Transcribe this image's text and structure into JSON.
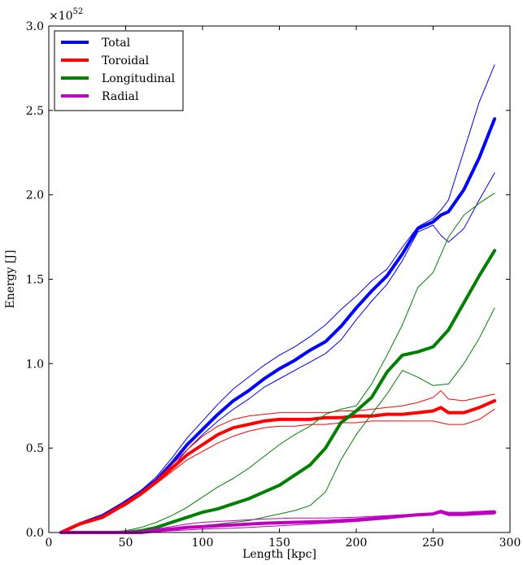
{
  "chart_data": {
    "type": "line",
    "title": "",
    "xlabel": "Length [kpc]",
    "ylabel": "Energy [J]",
    "y_multiplier": "×10^52",
    "y_multiplier_base": "×10",
    "y_multiplier_exp": "52",
    "xlim": [
      0,
      300
    ],
    "ylim": [
      0,
      3.0
    ],
    "xticks": [
      0,
      50,
      100,
      150,
      200,
      250,
      300
    ],
    "xtick_labels": [
      "0",
      "50",
      "100",
      "150",
      "200",
      "250",
      "300"
    ],
    "yticks": [
      0,
      0.5,
      1.0,
      1.5,
      2.0,
      2.5,
      3.0
    ],
    "ytick_labels": [
      "0.0",
      "0.5",
      "1.0",
      "1.5",
      "2.0",
      "2.5",
      "3.0"
    ],
    "grid": false,
    "legend_position": "top-left",
    "series": [
      {
        "name": "Total",
        "color": "#0000ff",
        "x": [
          8,
          20,
          35,
          50,
          60,
          70,
          80,
          90,
          100,
          110,
          120,
          130,
          140,
          150,
          160,
          170,
          180,
          190,
          200,
          210,
          220,
          230,
          240,
          250,
          255,
          260,
          270,
          280,
          290
        ],
        "mean": [
          0.0,
          0.05,
          0.1,
          0.18,
          0.24,
          0.31,
          0.41,
          0.52,
          0.61,
          0.7,
          0.78,
          0.84,
          0.91,
          0.97,
          1.02,
          1.08,
          1.13,
          1.22,
          1.33,
          1.43,
          1.52,
          1.65,
          1.8,
          1.84,
          1.88,
          1.9,
          2.03,
          2.22,
          2.45
        ],
        "upper": [
          0.0,
          0.05,
          0.1,
          0.19,
          0.25,
          0.33,
          0.44,
          0.56,
          0.66,
          0.76,
          0.85,
          0.92,
          0.99,
          1.05,
          1.1,
          1.16,
          1.23,
          1.32,
          1.4,
          1.49,
          1.56,
          1.69,
          1.81,
          1.86,
          1.91,
          1.97,
          2.26,
          2.55,
          2.77
        ],
        "lower": [
          0.0,
          0.05,
          0.09,
          0.17,
          0.23,
          0.29,
          0.38,
          0.49,
          0.58,
          0.66,
          0.73,
          0.79,
          0.86,
          0.91,
          0.96,
          1.01,
          1.06,
          1.14,
          1.26,
          1.37,
          1.47,
          1.61,
          1.78,
          1.82,
          1.76,
          1.72,
          1.8,
          1.97,
          2.13
        ]
      },
      {
        "name": "Toroidal",
        "color": "#ff0000",
        "x": [
          8,
          20,
          35,
          50,
          60,
          70,
          80,
          90,
          100,
          110,
          120,
          130,
          140,
          150,
          160,
          170,
          180,
          190,
          200,
          210,
          220,
          230,
          240,
          250,
          255,
          260,
          270,
          280,
          290
        ],
        "mean": [
          0.0,
          0.05,
          0.09,
          0.17,
          0.23,
          0.3,
          0.38,
          0.46,
          0.52,
          0.58,
          0.62,
          0.64,
          0.66,
          0.67,
          0.67,
          0.67,
          0.68,
          0.68,
          0.69,
          0.69,
          0.7,
          0.7,
          0.71,
          0.72,
          0.74,
          0.71,
          0.71,
          0.74,
          0.78
        ],
        "upper": [
          0.0,
          0.05,
          0.1,
          0.18,
          0.24,
          0.31,
          0.4,
          0.49,
          0.57,
          0.63,
          0.67,
          0.69,
          0.7,
          0.71,
          0.71,
          0.71,
          0.71,
          0.72,
          0.72,
          0.73,
          0.74,
          0.75,
          0.77,
          0.8,
          0.84,
          0.79,
          0.78,
          0.8,
          0.82
        ],
        "lower": [
          0.0,
          0.05,
          0.09,
          0.16,
          0.22,
          0.29,
          0.36,
          0.43,
          0.48,
          0.53,
          0.57,
          0.6,
          0.62,
          0.63,
          0.63,
          0.64,
          0.64,
          0.65,
          0.65,
          0.66,
          0.66,
          0.66,
          0.66,
          0.66,
          0.65,
          0.64,
          0.64,
          0.67,
          0.73
        ]
      },
      {
        "name": "Longitudinal",
        "color": "#008000",
        "x": [
          8,
          30,
          50,
          60,
          70,
          80,
          90,
          100,
          110,
          120,
          130,
          140,
          150,
          160,
          170,
          180,
          190,
          200,
          210,
          220,
          230,
          240,
          250,
          260,
          270,
          280,
          290
        ],
        "mean": [
          0.0,
          0.0,
          0.0,
          0.01,
          0.03,
          0.06,
          0.09,
          0.12,
          0.14,
          0.17,
          0.2,
          0.24,
          0.28,
          0.34,
          0.4,
          0.5,
          0.65,
          0.72,
          0.8,
          0.95,
          1.05,
          1.07,
          1.1,
          1.2,
          1.36,
          1.52,
          1.67
        ],
        "upper": [
          0.0,
          0.0,
          0.01,
          0.03,
          0.06,
          0.1,
          0.15,
          0.21,
          0.27,
          0.32,
          0.38,
          0.45,
          0.52,
          0.58,
          0.63,
          0.7,
          0.73,
          0.75,
          0.88,
          1.05,
          1.23,
          1.45,
          1.54,
          1.75,
          1.88,
          1.95,
          2.01
        ],
        "lower": [
          0.0,
          0.0,
          0.0,
          0.0,
          0.01,
          0.02,
          0.03,
          0.04,
          0.05,
          0.06,
          0.07,
          0.09,
          0.11,
          0.13,
          0.16,
          0.24,
          0.43,
          0.58,
          0.7,
          0.82,
          0.96,
          0.92,
          0.87,
          0.88,
          1.0,
          1.15,
          1.33
        ]
      },
      {
        "name": "Radial",
        "color": "#bf00bf",
        "x": [
          8,
          30,
          50,
          60,
          70,
          80,
          90,
          100,
          120,
          140,
          160,
          180,
          200,
          220,
          240,
          250,
          255,
          260,
          270,
          280,
          290
        ],
        "mean": [
          0.0,
          0.0,
          0.0,
          0.0,
          0.01,
          0.02,
          0.03,
          0.035,
          0.045,
          0.055,
          0.06,
          0.065,
          0.075,
          0.09,
          0.105,
          0.11,
          0.125,
          0.11,
          0.11,
          0.115,
          0.12
        ],
        "upper": [
          0.0,
          0.0,
          0.0,
          0.01,
          0.02,
          0.035,
          0.05,
          0.06,
          0.07,
          0.08,
          0.085,
          0.085,
          0.09,
          0.1,
          0.11,
          0.115,
          0.13,
          0.12,
          0.12,
          0.125,
          0.13
        ],
        "lower": [
          0.0,
          0.0,
          0.0,
          0.0,
          0.005,
          0.01,
          0.015,
          0.02,
          0.025,
          0.035,
          0.045,
          0.055,
          0.065,
          0.08,
          0.1,
          0.105,
          0.115,
          0.1,
          0.1,
          0.105,
          0.11
        ]
      }
    ]
  }
}
